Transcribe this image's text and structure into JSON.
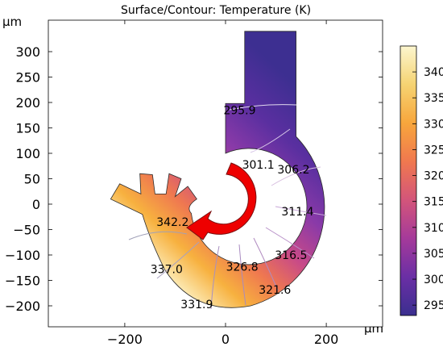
{
  "chart_data": {
    "type": "heatmap",
    "title": "Surface/Contour: Temperature (K)",
    "xlabel": "μm",
    "ylabel": "μm",
    "xlim": [
      -340,
      340
    ],
    "ylim": [
      -215,
      340
    ],
    "x_ticks": [
      -200,
      0,
      200
    ],
    "x_tick_labels": [
      "−200",
      "0",
      "200"
    ],
    "y_ticks": [
      300,
      250,
      200,
      150,
      100,
      50,
      0,
      -50,
      -100,
      -150,
      -200
    ],
    "y_tick_labels": [
      "300",
      "250",
      "200",
      "150",
      "100",
      "50",
      "0",
      "−50",
      "−100",
      "−150",
      "−200"
    ],
    "colorbar": {
      "min": 293,
      "max": 345,
      "ticks": [
        340,
        335,
        330,
        325,
        320,
        315,
        310,
        305,
        300,
        295
      ],
      "tick_labels": [
        "340",
        "335",
        "330",
        "325",
        "320",
        "315",
        "310",
        "305",
        "300",
        "295"
      ],
      "colormap": [
        "#3b2f8f",
        "#6a2fa5",
        "#a53a9a",
        "#d3557a",
        "#f0784f",
        "#f7a63c",
        "#f5d372",
        "#fcf6cf"
      ]
    },
    "contour_labels": [
      {
        "text": "295.9",
        "x": 28,
        "y": 185
      },
      {
        "text": "301.1",
        "x": 65,
        "y": 78
      },
      {
        "text": "306.2",
        "x": 135,
        "y": 68
      },
      {
        "text": "311.4",
        "x": 143,
        "y": -14
      },
      {
        "text": "316.5",
        "x": 130,
        "y": -100
      },
      {
        "text": "321.6",
        "x": 98,
        "y": -168
      },
      {
        "text": "326.8",
        "x": 33,
        "y": -123
      },
      {
        "text": "331.9",
        "x": -57,
        "y": -197
      },
      {
        "text": "337.0",
        "x": -117,
        "y": -128
      },
      {
        "text": "342.2",
        "x": -105,
        "y": -35
      }
    ]
  }
}
